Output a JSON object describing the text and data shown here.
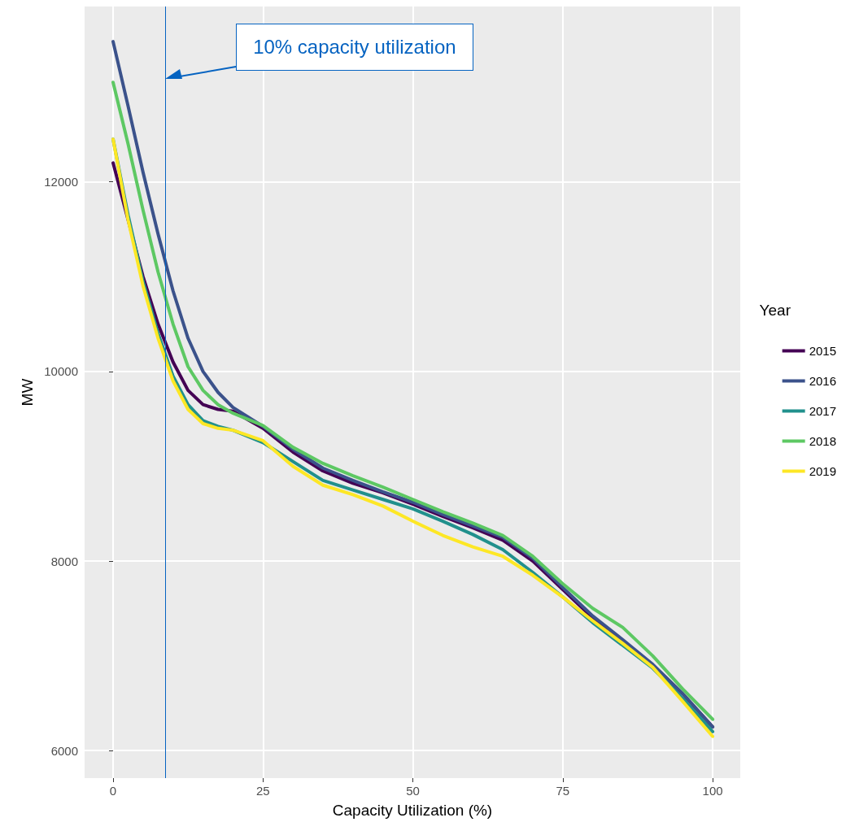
{
  "chart_data": {
    "type": "line",
    "xlabel": "Capacity Utilization (%)",
    "ylabel": "MW",
    "legend_title": "Year",
    "x": [
      0,
      2.5,
      5,
      7.5,
      10,
      12.5,
      15,
      17.5,
      20,
      25,
      30,
      35,
      40,
      45,
      50,
      55,
      60,
      65,
      70,
      75,
      80,
      85,
      90,
      95,
      100
    ],
    "series": [
      {
        "name": "2015",
        "color": "#440154",
        "values": [
          12200,
          11600,
          11000,
          10500,
          10100,
          9800,
          9650,
          9600,
          9580,
          9400,
          9150,
          8950,
          8820,
          8720,
          8600,
          8470,
          8350,
          8220,
          8000,
          7700,
          7400,
          7150,
          6900,
          6600,
          6250
        ]
      },
      {
        "name": "2016",
        "color": "#3b528b",
        "values": [
          13480,
          12800,
          12100,
          11450,
          10850,
          10350,
          10000,
          9780,
          9620,
          9420,
          9180,
          8980,
          8850,
          8730,
          8620,
          8490,
          8370,
          8250,
          8030,
          7720,
          7420,
          7170,
          6910,
          6600,
          6250
        ]
      },
      {
        "name": "2017",
        "color": "#21908c",
        "values": [
          12450,
          11650,
          10950,
          10400,
          9950,
          9650,
          9480,
          9420,
          9380,
          9250,
          9050,
          8850,
          8750,
          8650,
          8550,
          8420,
          8280,
          8120,
          7880,
          7620,
          7350,
          7110,
          6870,
          6550,
          6200
        ]
      },
      {
        "name": "2018",
        "color": "#5dc863",
        "values": [
          13050,
          12400,
          11700,
          11050,
          10500,
          10050,
          9800,
          9650,
          9560,
          9430,
          9200,
          9030,
          8900,
          8780,
          8650,
          8520,
          8400,
          8270,
          8050,
          7760,
          7500,
          7300,
          7000,
          6650,
          6330
        ]
      },
      {
        "name": "2019",
        "color": "#fde725",
        "values": [
          12450,
          11600,
          10900,
          10350,
          9900,
          9600,
          9450,
          9400,
          9380,
          9270,
          9000,
          8800,
          8700,
          8580,
          8420,
          8270,
          8150,
          8050,
          7850,
          7620,
          7370,
          7130,
          6880,
          6520,
          6150
        ]
      }
    ],
    "xlim": [
      -4.75,
      104.6
    ],
    "xticks": [
      0,
      25,
      50,
      75,
      100
    ],
    "ylim": [
      5710,
      13850
    ],
    "yticks": [
      6000,
      8000,
      10000,
      12000
    ],
    "grid": true,
    "legend": "right",
    "marker": "none",
    "line_style": "solid",
    "ref_lines": [
      {
        "axis": "x",
        "value": 8.7,
        "color": "#0563c1"
      }
    ],
    "annotations": [
      "10% capacity utilization"
    ]
  }
}
